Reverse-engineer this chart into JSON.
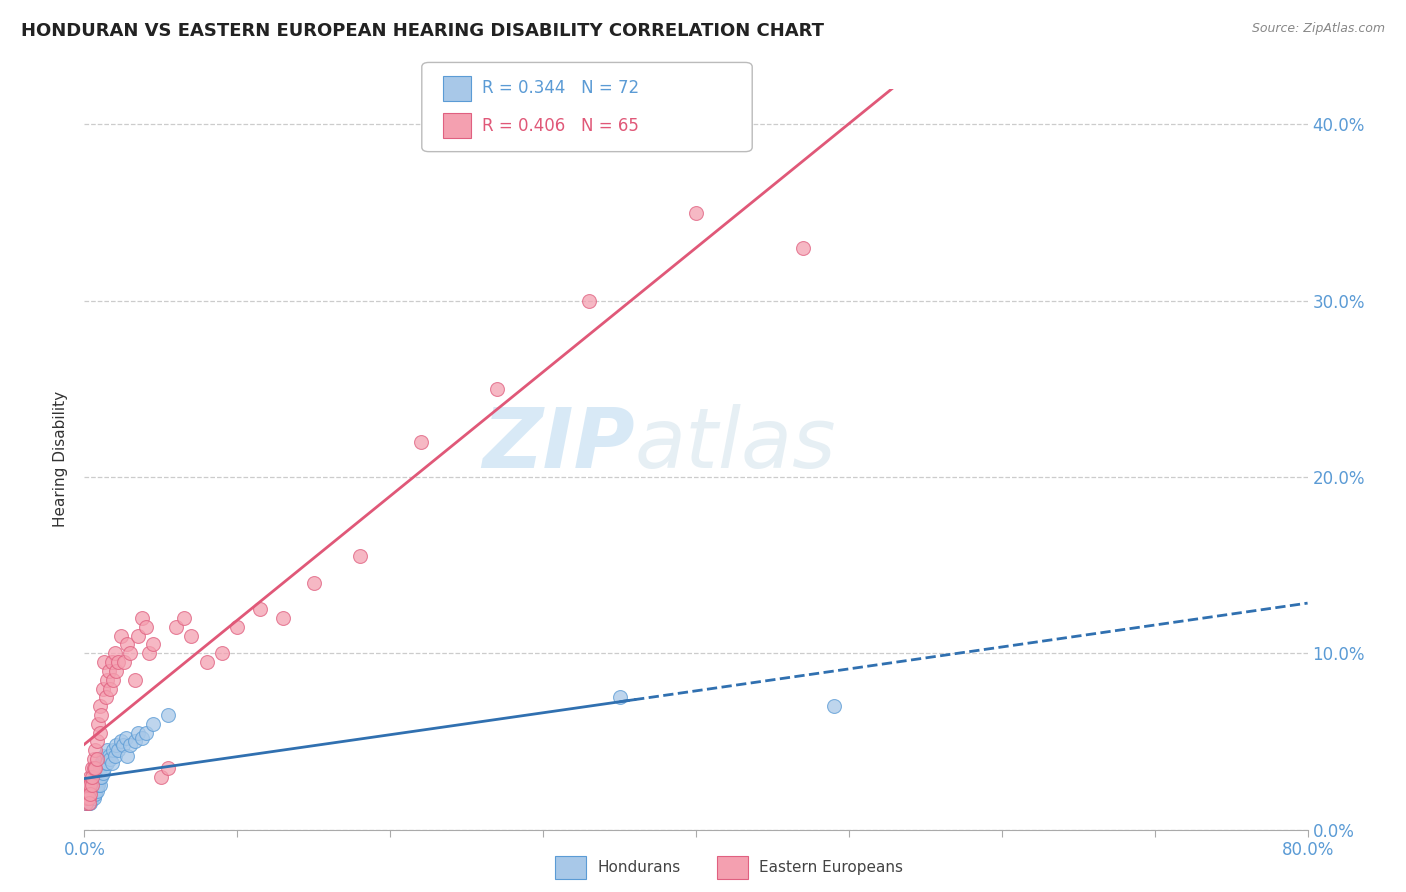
{
  "title": "HONDURAN VS EASTERN EUROPEAN HEARING DISABILITY CORRELATION CHART",
  "source": "Source: ZipAtlas.com",
  "ylabel": "Hearing Disability",
  "watermark_zip": "ZIP",
  "watermark_atlas": "atlas",
  "blue_color": "#a8c8e8",
  "pink_color": "#f4a0b0",
  "blue_edge": "#5b9bd5",
  "pink_edge": "#e06080",
  "blue_line_color": "#3070b0",
  "pink_line_color": "#e05878",
  "legend_r1": "R = 0.344",
  "legend_n1": "N = 72",
  "legend_r2": "R = 0.406",
  "legend_n2": "N = 65",
  "tick_color": "#5b9bd5",
  "hondurans_x": [
    0.0,
    0.001,
    0.001,
    0.001,
    0.001,
    0.001,
    0.002,
    0.002,
    0.002,
    0.002,
    0.002,
    0.002,
    0.002,
    0.003,
    0.003,
    0.003,
    0.003,
    0.003,
    0.004,
    0.004,
    0.004,
    0.004,
    0.004,
    0.005,
    0.005,
    0.005,
    0.005,
    0.006,
    0.006,
    0.006,
    0.006,
    0.007,
    0.007,
    0.007,
    0.007,
    0.008,
    0.008,
    0.008,
    0.009,
    0.009,
    0.01,
    0.01,
    0.01,
    0.011,
    0.011,
    0.012,
    0.012,
    0.013,
    0.013,
    0.014,
    0.015,
    0.015,
    0.016,
    0.017,
    0.018,
    0.019,
    0.02,
    0.021,
    0.022,
    0.024,
    0.025,
    0.027,
    0.028,
    0.03,
    0.033,
    0.035,
    0.038,
    0.04,
    0.045,
    0.055,
    0.35,
    0.49
  ],
  "hondurans_y": [
    0.02,
    0.018,
    0.022,
    0.015,
    0.025,
    0.018,
    0.02,
    0.015,
    0.022,
    0.018,
    0.02,
    0.025,
    0.015,
    0.018,
    0.022,
    0.015,
    0.02,
    0.018,
    0.025,
    0.02,
    0.018,
    0.022,
    0.015,
    0.025,
    0.02,
    0.018,
    0.022,
    0.02,
    0.025,
    0.022,
    0.018,
    0.028,
    0.022,
    0.025,
    0.02,
    0.03,
    0.025,
    0.022,
    0.028,
    0.025,
    0.035,
    0.025,
    0.03,
    0.038,
    0.03,
    0.04,
    0.032,
    0.042,
    0.035,
    0.038,
    0.045,
    0.038,
    0.042,
    0.04,
    0.038,
    0.045,
    0.042,
    0.048,
    0.045,
    0.05,
    0.048,
    0.052,
    0.042,
    0.048,
    0.05,
    0.055,
    0.052,
    0.055,
    0.06,
    0.065,
    0.075,
    0.07
  ],
  "eastern_x": [
    0.0,
    0.001,
    0.001,
    0.001,
    0.002,
    0.002,
    0.002,
    0.003,
    0.003,
    0.003,
    0.003,
    0.004,
    0.004,
    0.004,
    0.005,
    0.005,
    0.005,
    0.006,
    0.006,
    0.007,
    0.007,
    0.008,
    0.008,
    0.009,
    0.01,
    0.01,
    0.011,
    0.012,
    0.013,
    0.014,
    0.015,
    0.016,
    0.017,
    0.018,
    0.019,
    0.02,
    0.021,
    0.022,
    0.024,
    0.026,
    0.028,
    0.03,
    0.033,
    0.035,
    0.038,
    0.04,
    0.042,
    0.045,
    0.05,
    0.055,
    0.06,
    0.065,
    0.07,
    0.08,
    0.09,
    0.1,
    0.115,
    0.13,
    0.15,
    0.18,
    0.22,
    0.27,
    0.33,
    0.4,
    0.47
  ],
  "eastern_y": [
    0.02,
    0.018,
    0.022,
    0.015,
    0.02,
    0.025,
    0.018,
    0.022,
    0.018,
    0.025,
    0.015,
    0.03,
    0.025,
    0.02,
    0.035,
    0.025,
    0.03,
    0.04,
    0.035,
    0.045,
    0.035,
    0.05,
    0.04,
    0.06,
    0.07,
    0.055,
    0.065,
    0.08,
    0.095,
    0.075,
    0.085,
    0.09,
    0.08,
    0.095,
    0.085,
    0.1,
    0.09,
    0.095,
    0.11,
    0.095,
    0.105,
    0.1,
    0.085,
    0.11,
    0.12,
    0.115,
    0.1,
    0.105,
    0.03,
    0.035,
    0.115,
    0.12,
    0.11,
    0.095,
    0.1,
    0.115,
    0.125,
    0.12,
    0.14,
    0.155,
    0.22,
    0.25,
    0.3,
    0.35,
    0.33
  ],
  "xlim": [
    0.0,
    0.8
  ],
  "ylim": [
    0.0,
    0.42
  ],
  "xtick_pos": [
    0.0,
    0.1,
    0.2,
    0.3,
    0.4,
    0.5,
    0.6,
    0.7,
    0.8
  ],
  "ytick_pos": [
    0.0,
    0.1,
    0.2,
    0.3,
    0.4
  ],
  "ytick_labels": [
    "0.0%",
    "10.0%",
    "20.0%",
    "30.0%",
    "40.0%"
  ]
}
